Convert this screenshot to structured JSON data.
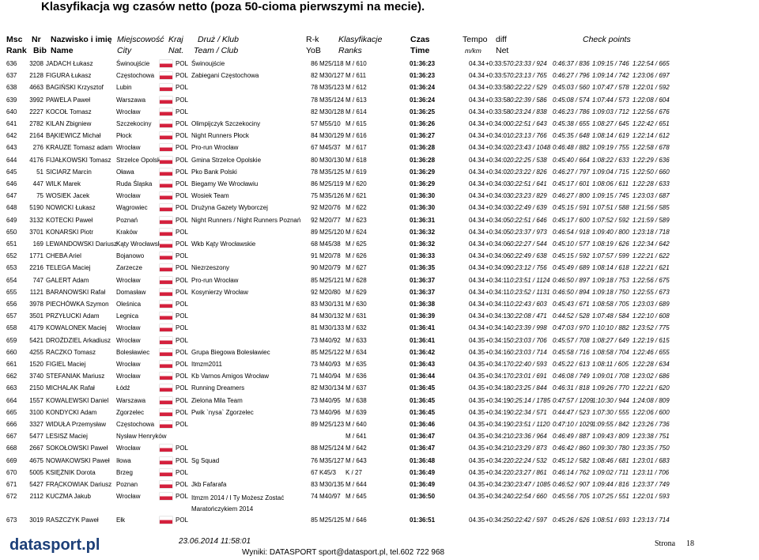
{
  "title": "Klasyfikacja wg czasów netto (poza 50-cioma pierwszymi na mecie).",
  "header": {
    "columns": [
      {
        "pl": "Msc",
        "en": "Rank"
      },
      {
        "pl": "Nr",
        "en": "Bib"
      },
      {
        "pl": "Nazwisko i imię",
        "en": "Name"
      },
      {
        "pl": "Miejscowość",
        "en": "City"
      },
      {
        "pl": "Kraj",
        "en": "Nat."
      },
      {
        "pl": "Druż / Klub",
        "en": "Team / Club"
      },
      {
        "pl": "R-k",
        "en": "YoB"
      },
      {
        "pl": "Klasyfikacje",
        "en": "Ranks"
      },
      {
        "pl": "Czas",
        "en": "Time"
      },
      {
        "pl": "Tempo",
        "en": "m/km"
      },
      {
        "pl": "diff",
        "en": "Net"
      }
    ],
    "checkpoints": "Check points"
  },
  "table": {
    "rows": [
      {
        "rank": "636",
        "bib": "3208",
        "name": "JADACH Łukasz",
        "city": "Świnoujście",
        "nat": "POL",
        "team": "Świnoujście",
        "yob": "86",
        "cat": "M25/118",
        "place": "M / 610",
        "time": "01:36:23",
        "pace": "04.34",
        "diff": "+0:33:57",
        "cp": [
          "0:23:33 / 924",
          "0:46:37 / 836",
          "1:09:15 / 746",
          "1:22:54 / 665"
        ]
      },
      {
        "rank": "637",
        "bib": "2128",
        "name": "FIGURA Łukasz",
        "city": "Częstochowa",
        "nat": "POL",
        "team": "Zabiegani Częstochowa",
        "yob": "82",
        "cat": "M30/127",
        "place": "M / 611",
        "time": "01:36:23",
        "pace": "04.34",
        "diff": "+0:33:57",
        "cp": [
          "0:23:13 / 765",
          "0:46:27 / 796",
          "1:09:14 / 742",
          "1:23:06 / 697"
        ]
      },
      {
        "rank": "638",
        "bib": "4663",
        "name": "BAGIŃSKI Krzysztof",
        "city": "Lubin",
        "nat": "POL",
        "yob": "78",
        "cat": "M35/123",
        "place": "M / 612",
        "time": "01:36:24",
        "pace": "04.34",
        "diff": "+0:33:58",
        "cp": [
          "0:22:22 / 529",
          "0:45:03 / 560",
          "1:07:47 / 578",
          "1:22:01 / 592"
        ]
      },
      {
        "rank": "639",
        "bib": "3992",
        "name": "PAWELA Paweł",
        "city": "Warszawa",
        "nat": "POL",
        "yob": "78",
        "cat": "M35/124",
        "place": "M / 613",
        "time": "01:36:24",
        "pace": "04.34",
        "diff": "+0:33:58",
        "cp": [
          "0:22:39 / 586",
          "0:45:08 / 574",
          "1:07:44 / 573",
          "1:22:08 / 604"
        ]
      },
      {
        "rank": "640",
        "bib": "2227",
        "name": "KOCOŁ Tomasz",
        "city": "Wrocław",
        "nat": "POL",
        "yob": "82",
        "cat": "M30/128",
        "place": "M / 614",
        "time": "01:36:25",
        "pace": "04.34",
        "diff": "+0:33:58",
        "cp": [
          "0:23:24 / 838",
          "0:46:23 / 786",
          "1:09:03 / 712",
          "1:22:56 / 676"
        ]
      },
      {
        "rank": "641",
        "bib": "2782",
        "name": "KILAN Zbigniew",
        "city": "Szczekociny",
        "nat": "POL",
        "team": "Olimpijczyk Szczekociny",
        "yob": "57",
        "cat": "M55/10",
        "place": "M / 615",
        "time": "01:36:26",
        "pace": "04.34",
        "diff": "+0:34:00",
        "cp": [
          "0:22:51 / 643",
          "0:45:38 / 655",
          "1:08:27 / 645",
          "1:22:42 / 651"
        ]
      },
      {
        "rank": "642",
        "bib": "2164",
        "name": "BĄKIEWICZ Michał",
        "city": "Płock",
        "nat": "POL",
        "team": "Night Runners Płock",
        "yob": "84",
        "cat": "M30/129",
        "place": "M / 616",
        "time": "01:36:27",
        "pace": "04.34",
        "diff": "+0:34:01",
        "cp": [
          "0:23:13 / 766",
          "0:45:35 / 648",
          "1:08:14 / 619",
          "1:22:14 / 612"
        ]
      },
      {
        "rank": "643",
        "bib": "276",
        "name": "KRAUZE Tomasz adam",
        "city": "Wrocław",
        "nat": "POL",
        "team": "Pro-run Wrocław",
        "yob": "67",
        "cat": "M45/37",
        "place": "M / 617",
        "time": "01:36:28",
        "pace": "04.34",
        "diff": "+0:34:02",
        "cp": [
          "0:23:43 / 1048",
          "0:46:48 / 882",
          "1:09:19 / 755",
          "1:22:58 / 678"
        ]
      },
      {
        "rank": "644",
        "bib": "4176",
        "name": "FIJAŁKOWSKI Tomasz",
        "city": "Strzelce Opolskie",
        "nat": "POL",
        "team": "Gmina Strzelce Opolskie",
        "yob": "80",
        "cat": "M30/130",
        "place": "M / 618",
        "time": "01:36:28",
        "pace": "04.34",
        "diff": "+0:34:02",
        "cp": [
          "0:22:25 / 538",
          "0:45:40 / 664",
          "1:08:22 / 633",
          "1:22:29 / 636"
        ]
      },
      {
        "rank": "645",
        "bib": "51",
        "name": "SICIARZ Marcin",
        "city": "Oława",
        "nat": "POL",
        "team": "Pko Bank Polski",
        "yob": "78",
        "cat": "M35/125",
        "place": "M / 619",
        "time": "01:36:29",
        "pace": "04.34",
        "diff": "+0:34:02",
        "cp": [
          "0:23:22 / 826",
          "0:46:27 / 797",
          "1:09:04 / 715",
          "1:22:50 / 660"
        ]
      },
      {
        "rank": "646",
        "bib": "447",
        "name": "WILK Marek",
        "city": "Ruda Śląska",
        "nat": "POL",
        "team": "Biegamy We Wrocławiu",
        "yob": "86",
        "cat": "M25/119",
        "place": "M / 620",
        "time": "01:36:29",
        "pace": "04.34",
        "diff": "+0:34:03",
        "cp": [
          "0:22:51 / 641",
          "0:45:17 / 601",
          "1:08:06 / 611",
          "1:22:28 / 633"
        ]
      },
      {
        "rank": "647",
        "bib": "75",
        "name": "WOSIEK Jacek",
        "city": "Wrocław",
        "nat": "POL",
        "team": "Wosiek Team",
        "yob": "75",
        "cat": "M35/126",
        "place": "M / 621",
        "time": "01:36:30",
        "pace": "04.34",
        "diff": "+0:34:03",
        "cp": [
          "0:23:23 / 829",
          "0:46:27 / 800",
          "1:09:15 / 745",
          "1:23:03 / 687"
        ]
      },
      {
        "rank": "648",
        "bib": "5190",
        "name": "NOWICKI Łukasz",
        "city": "Wągrowiec",
        "nat": "POL",
        "team": "Drużyna Gazety Wyborczej",
        "yob": "92",
        "cat": "M20/76",
        "place": "M / 622",
        "time": "01:36:30",
        "pace": "04.34",
        "diff": "+0:34:03",
        "cp": [
          "0:22:49 / 639",
          "0:45:15 / 591",
          "1:07:51 / 588",
          "1:21:56 / 585"
        ]
      },
      {
        "rank": "649",
        "bib": "3132",
        "name": "KOTECKI Paweł",
        "city": "Poznań",
        "nat": "POL",
        "team": "Night Runners / Night Runners Poznań",
        "yob": "92",
        "cat": "M20/77",
        "place": "M / 623",
        "time": "01:36:31",
        "pace": "04.34",
        "diff": "+0:34:05",
        "cp": [
          "0:22:51 / 646",
          "0:45:17 / 600",
          "1:07:52 / 592",
          "1:21:59 / 589"
        ]
      },
      {
        "rank": "650",
        "bib": "3701",
        "name": "KONARSKI Piotr",
        "city": "Kraków",
        "nat": "POL",
        "yob": "89",
        "cat": "M25/120",
        "place": "M / 624",
        "time": "01:36:32",
        "pace": "04.34",
        "diff": "+0:34:05",
        "cp": [
          "0:23:37 / 973",
          "0:46:54 / 918",
          "1:09:40 / 800",
          "1:23:18 / 718"
        ]
      },
      {
        "rank": "651",
        "bib": "169",
        "name": "LEWANDOWSKI Dariusz",
        "city": "Kąty Wrocławskie",
        "nat": "POL",
        "team": "Wkb Kąty Wrocławskie",
        "yob": "68",
        "cat": "M45/38",
        "place": "M / 625",
        "time": "01:36:32",
        "pace": "04.34",
        "diff": "+0:34:06",
        "cp": [
          "0:22:27 / 544",
          "0:45:10 / 577",
          "1:08:19 / 626",
          "1:22:34 / 642"
        ]
      },
      {
        "rank": "652",
        "bib": "1771",
        "name": "CHEBA Ariel",
        "city": "Bojanowo",
        "nat": "POL",
        "yob": "91",
        "cat": "M20/78",
        "place": "M / 626",
        "time": "01:36:33",
        "pace": "04.34",
        "diff": "+0:34:06",
        "cp": [
          "0:22:49 / 638",
          "0:45:15 / 592",
          "1:07:57 / 599",
          "1:22:21 / 622"
        ]
      },
      {
        "rank": "653",
        "bib": "2216",
        "name": "TELEGA Maciej",
        "city": "Zarzecze",
        "nat": "POL",
        "team": "Niezrzeszony",
        "yob": "90",
        "cat": "M20/79",
        "place": "M / 627",
        "time": "01:36:35",
        "pace": "04.34",
        "diff": "+0:34:09",
        "cp": [
          "0:23:12 / 756",
          "0:45:49 / 689",
          "1:08:14 / 618",
          "1:22:21 / 621"
        ]
      },
      {
        "rank": "654",
        "bib": "747",
        "name": "GALERT Adam",
        "city": "Wrocław",
        "nat": "POL",
        "team": "Pro-run Wrocław",
        "yob": "85",
        "cat": "M25/121",
        "place": "M / 628",
        "time": "01:36:37",
        "pace": "04.34",
        "diff": "+0:34:11",
        "cp": [
          "0:23:51 / 1124",
          "0:46:50 / 897",
          "1:09:18 / 753",
          "1:22:56 / 675"
        ]
      },
      {
        "rank": "655",
        "bib": "1121",
        "name": "BARANOWSKI Rafał",
        "city": "Domasław",
        "nat": "POL",
        "team": "Kosynierzy Wrocław",
        "yob": "92",
        "cat": "M20/80",
        "place": "M / 629",
        "time": "01:36:37",
        "pace": "04.34",
        "diff": "+0:34:11",
        "cp": [
          "0:23:52 / 1131",
          "0:46:50 / 894",
          "1:09:18 / 750",
          "1:22:55 / 673"
        ]
      },
      {
        "rank": "656",
        "bib": "3978",
        "name": "PIECHÓWKA Szymon",
        "city": "Oleśnica",
        "nat": "POL",
        "yob": "83",
        "cat": "M30/131",
        "place": "M / 630",
        "time": "01:36:38",
        "pace": "04.34",
        "diff": "+0:34:11",
        "cp": [
          "0:22:43 / 603",
          "0:45:43 / 671",
          "1:08:58 / 705",
          "1:23:03 / 689"
        ]
      },
      {
        "rank": "657",
        "bib": "3501",
        "name": "PRZYŁUCKI Adam",
        "city": "Legnica",
        "nat": "POL",
        "yob": "84",
        "cat": "M30/132",
        "place": "M / 631",
        "time": "01:36:39",
        "pace": "04.34",
        "diff": "+0:34:13",
        "cp": [
          "0:22:08 / 471",
          "0:44:52 / 528",
          "1:07:48 / 584",
          "1:22:10 / 608"
        ]
      },
      {
        "rank": "658",
        "bib": "4179",
        "name": "KOWALONEK Maciej",
        "city": "Wrocław",
        "nat": "POL",
        "yob": "81",
        "cat": "M30/133",
        "place": "M / 632",
        "time": "01:36:41",
        "pace": "04.34",
        "diff": "+0:34:14",
        "cp": [
          "0:23:39 / 998",
          "0:47:03 / 970",
          "1:10:10 / 882",
          "1:23:52 / 775"
        ]
      },
      {
        "rank": "659",
        "bib": "5421",
        "name": "DROŹDZIEL Arkadiusz",
        "city": "Wrocław",
        "nat": "POL",
        "yob": "73",
        "cat": "M40/92",
        "place": "M / 633",
        "time": "01:36:41",
        "pace": "04.35",
        "diff": "+0:34:15",
        "cp": [
          "0:23:03 / 706",
          "0:45:57 / 708",
          "1:08:27 / 649",
          "1:22:19 / 615"
        ]
      },
      {
        "rank": "660",
        "bib": "4255",
        "name": "RACZKO Tomasz",
        "city": "Bolesławiec",
        "nat": "POL",
        "team": "Grupa Biegowa Bolesławiec",
        "yob": "85",
        "cat": "M25/122",
        "place": "M / 634",
        "time": "01:36:42",
        "pace": "04.35",
        "diff": "+0:34:16",
        "cp": [
          "0:23:03 / 714",
          "0:45:58 / 716",
          "1:08:58 / 704",
          "1:22:46 / 655"
        ]
      },
      {
        "rank": "661",
        "bib": "1520",
        "name": "FIGIEL Maciej",
        "city": "Wrocław",
        "nat": "POL",
        "team": "Itmzm2011",
        "yob": "73",
        "cat": "M40/93",
        "place": "M / 635",
        "time": "01:36:43",
        "pace": "04.35",
        "diff": "+0:34:17",
        "cp": [
          "0:22:40 / 593",
          "0:45:22 / 613",
          "1:08:11 / 605",
          "1:22:28 / 634"
        ]
      },
      {
        "rank": "662",
        "bib": "3740",
        "name": "STEFANIAK Mariusz",
        "city": "Wrocław",
        "nat": "POL",
        "team": "Kb Varnos Amigos Wrocław",
        "yob": "71",
        "cat": "M40/94",
        "place": "M / 636",
        "time": "01:36:44",
        "pace": "04.35",
        "diff": "+0:34:17",
        "cp": [
          "0:23:01 / 691",
          "0:46:08 / 749",
          "1:09:01 / 708",
          "1:23:02 / 686"
        ]
      },
      {
        "rank": "663",
        "bib": "2150",
        "name": "MICHALAK Rafał",
        "city": "Łódź",
        "nat": "POL",
        "team": "Running Dreamers",
        "yob": "82",
        "cat": "M30/134",
        "place": "M / 637",
        "time": "01:36:45",
        "pace": "04.35",
        "diff": "+0:34:18",
        "cp": [
          "0:23:25 / 844",
          "0:46:31 / 818",
          "1:09:26 / 770",
          "1:22:21 / 620"
        ]
      },
      {
        "rank": "664",
        "bib": "1557",
        "name": "KOWALEWSKI Daniel",
        "city": "Warszawa",
        "nat": "POL",
        "team": "Zielona Mila Team",
        "yob": "73",
        "cat": "M40/95",
        "place": "M / 638",
        "time": "01:36:45",
        "pace": "04.35",
        "diff": "+0:34:19",
        "cp": [
          "0:25:14 / 1785",
          "0:47:57 / 1209",
          "1:10:30 / 944",
          "1:24:08 / 809"
        ]
      },
      {
        "rank": "665",
        "bib": "3100",
        "name": "KONDYCKI Adam",
        "city": "Zgorzelec",
        "nat": "POL",
        "team": "Pwik `nysa` Zgorzelec",
        "yob": "73",
        "cat": "M40/96",
        "place": "M / 639",
        "time": "01:36:45",
        "pace": "04.35",
        "diff": "+0:34:19",
        "cp": [
          "0:22:34 / 571",
          "0:44:47 / 523",
          "1:07:30 / 555",
          "1:22:06 / 600"
        ]
      },
      {
        "rank": "666",
        "bib": "3327",
        "name": "WIDUŁA Przemysław",
        "city": "Częstochowa",
        "nat": "POL",
        "yob": "89",
        "cat": "M25/123",
        "place": "M / 640",
        "time": "01:36:46",
        "pace": "04.35",
        "diff": "+0:34:19",
        "cp": [
          "0:23:51 / 1120",
          "0:47:10 / 1029",
          "1:09:55 / 842",
          "1:23:26 / 736"
        ]
      },
      {
        "rank": "667",
        "bib": "5477",
        "name": "LESISZ Maciej",
        "city": "Nysław Henryków",
        "place": "M / 641",
        "time": "01:36:47",
        "pace": "04.35",
        "diff": "+0:34:21",
        "cp": [
          "0:23:36 / 964",
          "0:46:49 / 887",
          "1:09:43 / 809",
          "1:23:38 / 751"
        ]
      },
      {
        "rank": "668",
        "bib": "2667",
        "name": "SOKOŁOWSKI Paweł",
        "city": "Wrocław",
        "nat": "POL",
        "yob": "88",
        "cat": "M25/124",
        "place": "M / 642",
        "time": "01:36:47",
        "pace": "04.35",
        "diff": "+0:34:21",
        "cp": [
          "0:23:29 / 873",
          "0:46:42 / 860",
          "1:09:30 / 780",
          "1:23:35 / 750"
        ]
      },
      {
        "rank": "669",
        "bib": "4675",
        "name": "NOWAKOWSKI Paweł",
        "city": "Iłowa",
        "nat": "POL",
        "team": "Sg Squad",
        "yob": "76",
        "cat": "M35/127",
        "place": "M / 643",
        "time": "01:36:48",
        "pace": "04.35",
        "diff": "+0:34:22",
        "cp": [
          "0:22:24 / 532",
          "0:45:12 / 582",
          "1:08:46 / 681",
          "1:23:01 / 683"
        ]
      },
      {
        "rank": "670",
        "bib": "5005",
        "name": "KSIĘŻNIK Dorota",
        "city": "Brzeg",
        "nat": "POL",
        "yob": "67",
        "cat": "K45/3",
        "place": "K / 27",
        "time": "01:36:49",
        "pace": "04.35",
        "diff": "+0:34:22",
        "cp": [
          "0:23:27 / 861",
          "0:46:14 / 762",
          "1:09:02 / 711",
          "1:23:11 / 706"
        ]
      },
      {
        "rank": "671",
        "bib": "5427",
        "name": "FRĄCKOWIAK Dariusz",
        "city": "Poznan",
        "nat": "POL",
        "team": "Jkb Fafarafa",
        "yob": "83",
        "cat": "M30/135",
        "place": "M / 644",
        "time": "01:36:49",
        "pace": "04.35",
        "diff": "+0:34:23",
        "cp": [
          "0:23:47 / 1085",
          "0:46:52 / 907",
          "1:09:44 / 816",
          "1:23:37 / 749"
        ]
      },
      {
        "rank": "672",
        "bib": "2112",
        "name": "KUCZMA Jakub",
        "city": "Wrocław",
        "nat": "POL",
        "team": "Itmzm 2014 / I Ty Możesz Zostać Maratończykiem 2014",
        "yob": "74",
        "cat": "M40/97",
        "place": "M / 645",
        "time": "01:36:50",
        "pace": "04.35",
        "diff": "+0:34:24",
        "cp": [
          "0:22:54 / 660",
          "0:45:56 / 705",
          "1:07:25 / 551",
          "1:22:01 / 593"
        ]
      },
      {
        "rank": "673",
        "bib": "3019",
        "name": "RASZCZYK Paweł",
        "city": "Ełk",
        "nat": "POL",
        "yob": "85",
        "cat": "M25/125",
        "place": "M / 646",
        "time": "01:36:51",
        "pace": "04.35",
        "diff": "+0:34:25",
        "cp": [
          "0:22:42 / 597",
          "0:45:26 / 626",
          "1:08:51 / 693",
          "1:23:13 / 714"
        ]
      }
    ]
  },
  "footer": {
    "logo": "datasport.pl",
    "date": "23.06.2014 11:58:01",
    "contact": "Wyniki: DATASPORT sport@datasport.pl, tel.602 722 968",
    "page_label": "Strona",
    "page": "18"
  }
}
